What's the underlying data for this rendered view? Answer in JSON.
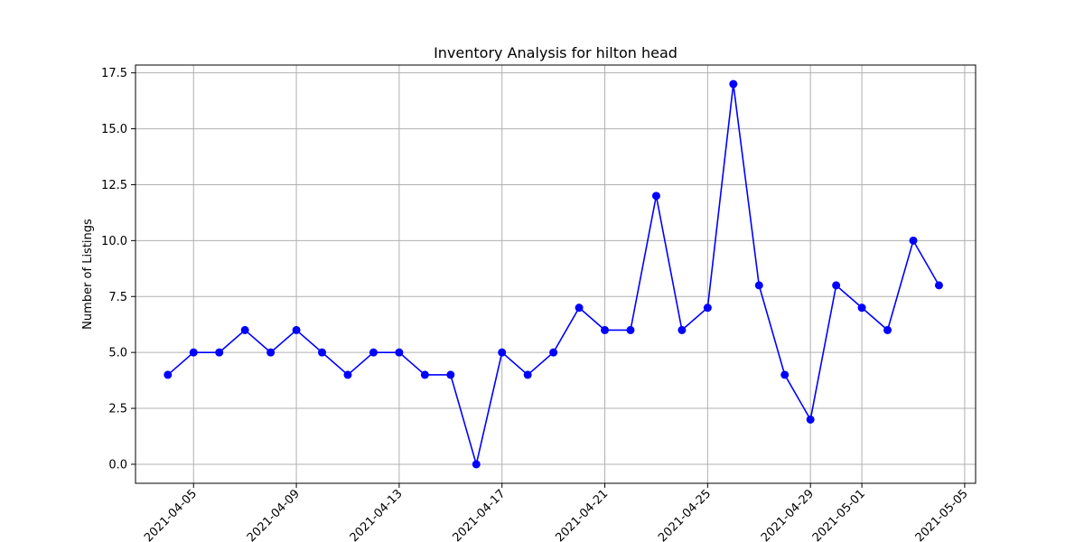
{
  "chart_data": {
    "type": "line",
    "title": "Inventory Analysis for hilton head",
    "xlabel": "",
    "ylabel": "Number of Listings",
    "x": [
      "2021-04-04",
      "2021-04-05",
      "2021-04-06",
      "2021-04-07",
      "2021-04-08",
      "2021-04-09",
      "2021-04-10",
      "2021-04-11",
      "2021-04-12",
      "2021-04-13",
      "2021-04-14",
      "2021-04-15",
      "2021-04-16",
      "2021-04-17",
      "2021-04-18",
      "2021-04-19",
      "2021-04-20",
      "2021-04-21",
      "2021-04-22",
      "2021-04-23",
      "2021-04-24",
      "2021-04-25",
      "2021-04-26",
      "2021-04-27",
      "2021-04-28",
      "2021-04-29",
      "2021-04-30",
      "2021-05-01",
      "2021-05-02",
      "2021-05-03",
      "2021-05-04"
    ],
    "series": [
      {
        "values": [
          4,
          5,
          5,
          6,
          5,
          6,
          5,
          4,
          5,
          5,
          4,
          4,
          0,
          5,
          4,
          5,
          7,
          6,
          6,
          12,
          6,
          7,
          17,
          8,
          4,
          2,
          8,
          7,
          6,
          10,
          8
        ],
        "color": "#0000ff",
        "marker": "circle"
      }
    ],
    "xlim": [
      "2021-04-02T17:48",
      "2021-05-05T10:12"
    ],
    "ylim": [
      -0.85,
      17.85
    ],
    "xticks": [
      "2021-04-05",
      "2021-04-09",
      "2021-04-13",
      "2021-04-17",
      "2021-04-21",
      "2021-04-25",
      "2021-04-29",
      "2021-05-01",
      "2021-05-05"
    ],
    "yticks": [
      "0.0",
      "2.5",
      "5.0",
      "7.5",
      "10.0",
      "12.5",
      "15.0",
      "17.5"
    ],
    "grid": true
  }
}
